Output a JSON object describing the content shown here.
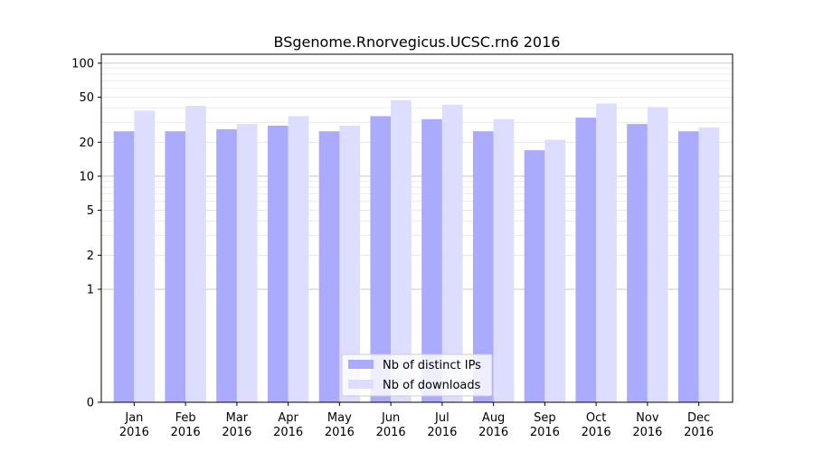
{
  "chart_data": {
    "type": "bar",
    "title": "BSgenome.Rnorvegicus.UCSC.rn6 2016",
    "xlabel": "",
    "ylabel": "",
    "y_scale": "symlog",
    "ylim": [
      0,
      120
    ],
    "grid": true,
    "legend_position": "lower-center",
    "categories": [
      [
        "Jan",
        "2016"
      ],
      [
        "Feb",
        "2016"
      ],
      [
        "Mar",
        "2016"
      ],
      [
        "Apr",
        "2016"
      ],
      [
        "May",
        "2016"
      ],
      [
        "Jun",
        "2016"
      ],
      [
        "Jul",
        "2016"
      ],
      [
        "Aug",
        "2016"
      ],
      [
        "Sep",
        "2016"
      ],
      [
        "Oct",
        "2016"
      ],
      [
        "Nov",
        "2016"
      ],
      [
        "Dec",
        "2016"
      ]
    ],
    "y_ticks": [
      0,
      1,
      2,
      5,
      10,
      20,
      50,
      100
    ],
    "series": [
      {
        "name": "Nb of distinct IPs",
        "color": "#aaaaff",
        "values": [
          25,
          25,
          26,
          28,
          25,
          34,
          32,
          25,
          17,
          33,
          29,
          25
        ]
      },
      {
        "name": "Nb of downloads",
        "color": "#ddddff",
        "values": [
          38,
          42,
          29,
          34,
          28,
          47,
          43,
          32,
          21,
          44,
          41,
          27
        ]
      }
    ]
  }
}
